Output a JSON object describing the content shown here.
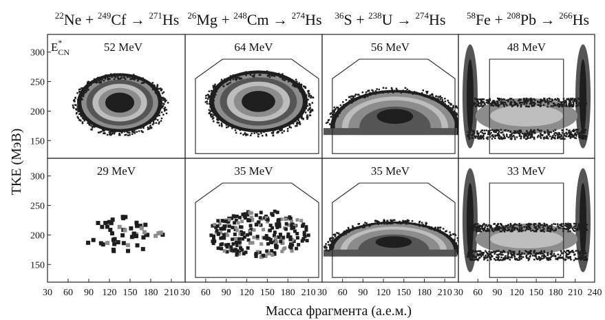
{
  "chart_data": {
    "type": "heatmap",
    "reactions": [
      {
        "parts": [
          {
            "sup": "22",
            "el": "Ne"
          },
          {
            "op": "+"
          },
          {
            "sup": "249",
            "el": "Cf"
          },
          {
            "op": "→"
          },
          {
            "sup": "271",
            "el": "Hs"
          }
        ]
      },
      {
        "parts": [
          {
            "sup": "26",
            "el": "Mg"
          },
          {
            "op": "+"
          },
          {
            "sup": "248",
            "el": "Cm"
          },
          {
            "op": "→"
          },
          {
            "sup": "274",
            "el": "Hs"
          }
        ]
      },
      {
        "parts": [
          {
            "sup": "36",
            "el": "S"
          },
          {
            "op": "+"
          },
          {
            "sup": "238",
            "el": "U"
          },
          {
            "op": "→"
          },
          {
            "sup": "274",
            "el": "Hs"
          }
        ]
      },
      {
        "parts": [
          {
            "sup": "58",
            "el": "Fe"
          },
          {
            "op": "+"
          },
          {
            "sup": "208",
            "el": "Pb"
          },
          {
            "op": "→"
          },
          {
            "sup": "266",
            "el": "Hs"
          }
        ]
      }
    ],
    "energy_symbol": {
      "base": "E",
      "sup": "*",
      "sub": "CN"
    },
    "panels": [
      {
        "row": 0,
        "col": 0,
        "energy": "52 MeV",
        "shape": "oval",
        "center_mass": 135,
        "center_tke": 212,
        "half_width": 62,
        "height": 95,
        "window": false
      },
      {
        "row": 0,
        "col": 1,
        "energy": "64 MeV",
        "shape": "oval",
        "center_mass": 137,
        "center_tke": 214,
        "half_width": 72,
        "height": 100,
        "window": true
      },
      {
        "row": 0,
        "col": 2,
        "energy": "56 MeV",
        "shape": "arc",
        "center_mass": 137,
        "center_tke": 200,
        "half_width": 95,
        "height": 90,
        "window": true
      },
      {
        "row": 0,
        "col": 3,
        "energy": "48 MeV",
        "shape": "quasi",
        "center_mass": 135,
        "center_tke": 200,
        "half_width": 75,
        "height": 80,
        "window": true
      },
      {
        "row": 1,
        "col": 0,
        "energy": "29 MeV",
        "shape": "sparse",
        "center_mass": 135,
        "center_tke": 205,
        "half_width": 60,
        "height": 60,
        "window": false
      },
      {
        "row": 1,
        "col": 1,
        "energy": "35 MeV",
        "shape": "sparse",
        "center_mass": 135,
        "center_tke": 205,
        "half_width": 75,
        "height": 80,
        "window": true
      },
      {
        "row": 1,
        "col": 2,
        "energy": "35 MeV",
        "shape": "arc",
        "center_mass": 135,
        "center_tke": 195,
        "half_width": 95,
        "height": 70,
        "window": true
      },
      {
        "row": 1,
        "col": 3,
        "energy": "33 MeV",
        "shape": "quasi",
        "center_mass": 135,
        "center_tke": 200,
        "half_width": 75,
        "height": 70,
        "window": true
      }
    ],
    "x_ticks_per_panel": [
      [
        "30",
        "60",
        "90",
        "120",
        "150",
        "180",
        "210"
      ],
      [
        "30",
        "60",
        "90",
        "120",
        "150",
        "180",
        "210"
      ],
      [
        "30",
        "60",
        "90",
        "120",
        "150",
        "180",
        "210"
      ],
      [
        "30",
        "60",
        "90",
        "120",
        "150",
        "180",
        "210",
        "240"
      ]
    ],
    "xlim": [
      30,
      230
    ],
    "xlim_last": [
      30,
      240
    ],
    "y_ticks": [
      "150",
      "200",
      "250",
      "300"
    ],
    "ylim": [
      120,
      330
    ],
    "xlabel": "Масса фрагмента (а.е.м.)",
    "ylabel": "TKE (МэВ)",
    "colors": {
      "dark": "#1e1e1e",
      "mid": "#555555",
      "light": "#8c8c8c",
      "pale": "#bdbdbd",
      "frame": "#222222"
    }
  }
}
